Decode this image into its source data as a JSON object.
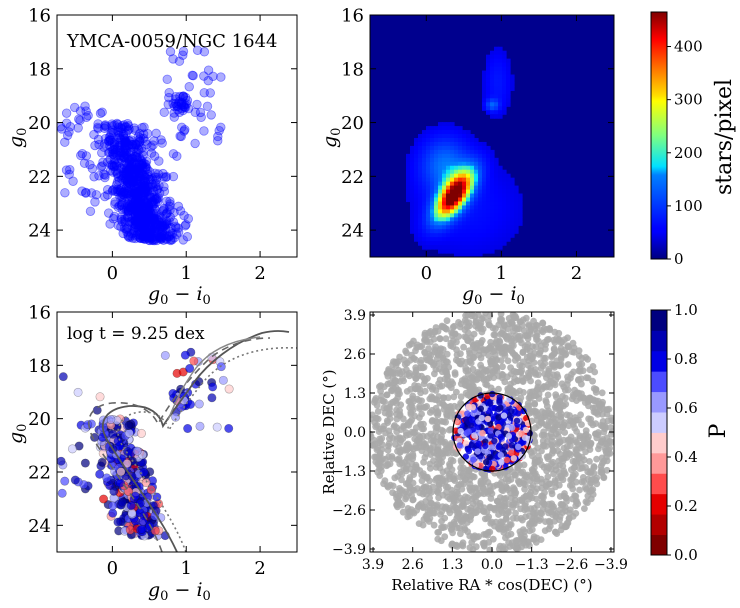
{
  "figure": {
    "panels": [
      {
        "id": "cmd",
        "type": "scatter",
        "xlabel_main": "g",
        "xlabel_sub0": "0",
        "xlabel_minus": " − ",
        "xlabel_i": "i",
        "xlabel_sub1": "0",
        "ylabel_main": "g",
        "ylabel_sub": "0",
        "annotation": "YMCA-0059/NGC 1644",
        "xlim": [
          -0.75,
          2.5
        ],
        "ylim": [
          25.0,
          16.0
        ],
        "xticks": [
          "0",
          "1",
          "2"
        ],
        "yticks": [
          "16",
          "18",
          "20",
          "22",
          "24"
        ],
        "point_color": "#0000ff"
      },
      {
        "id": "density",
        "type": "heatmap",
        "xlabel_main": "g",
        "xlabel_sub0": "0",
        "xlabel_minus": " − ",
        "xlabel_i": "i",
        "xlabel_sub1": "0",
        "ylabel_main": "g",
        "ylabel_sub": "0",
        "xlim": [
          -0.75,
          2.5
        ],
        "ylim": [
          25.0,
          16.0
        ],
        "xticks": [
          "0",
          "1",
          "2"
        ],
        "yticks": [
          "16",
          "18",
          "20",
          "22",
          "24"
        ],
        "colorbar_label": "stars/pixel",
        "colorbar_ticks": [
          "0",
          "100",
          "200",
          "300",
          "400"
        ],
        "colorbar_range": [
          0,
          465
        ]
      },
      {
        "id": "isochrone",
        "type": "scatter",
        "xlabel_main": "g",
        "xlabel_sub0": "0",
        "xlabel_minus": " − ",
        "xlabel_i": "i",
        "xlabel_sub1": "0",
        "ylabel_main": "g",
        "ylabel_sub": "0",
        "annotation": "log t = 9.25 dex",
        "xlim": [
          -0.75,
          2.5
        ],
        "ylim": [
          25.0,
          16.0
        ],
        "xticks": [
          "0",
          "1",
          "2"
        ],
        "yticks": [
          "16",
          "18",
          "20",
          "22",
          "24"
        ]
      },
      {
        "id": "sky",
        "type": "scatter",
        "xlabel": "Relative RA * cos(DEC) (°)",
        "ylabel": "Relative DEC (°)",
        "xlim": [
          4.0,
          -4.0
        ],
        "ylim": [
          -4.0,
          4.0
        ],
        "xticks": [
          "3.9",
          "2.6",
          "1.3",
          "0.0",
          "−1.3",
          "−2.6",
          "−3.9"
        ],
        "yticks": [
          "3.9",
          "2.6",
          "1.3",
          "0.0",
          "−1.3",
          "−2.6",
          "−3.9"
        ],
        "field_radius": 4.0,
        "cluster_radius": 1.3,
        "field_color": "#a9a9a9",
        "colorbar_label": "P",
        "colorbar_ticks": [
          "0.0",
          "0.2",
          "0.4",
          "0.6",
          "0.8",
          "1.0"
        ],
        "membership_colors": [
          "#7f0000",
          "#b20000",
          "#e50000",
          "#ff4c4c",
          "#ff9999",
          "#ffcccc",
          "#ccccff",
          "#9999ff",
          "#4c4cff",
          "#0000e5",
          "#0000b2",
          "#00007f"
        ]
      }
    ]
  },
  "chart_data": [
    {
      "type": "scatter",
      "title": "YMCA-0059/NGC 1644",
      "xlabel": "g0 − i0",
      "ylabel": "g0",
      "xlim": [
        -0.75,
        2.5
      ],
      "ylim": [
        25.0,
        16.0
      ],
      "series": [
        {
          "name": "main sequence",
          "x_center": 0.35,
          "y_range": [
            20.0,
            24.5
          ],
          "approx_points": 750
        },
        {
          "name": "red clump",
          "x": 0.92,
          "y": 19.3,
          "approx_points": 25
        },
        {
          "name": "field outliers",
          "x_range": [
            -0.7,
            1.7
          ],
          "y_range": [
            17.0,
            24.5
          ]
        }
      ]
    },
    {
      "type": "heatmap",
      "xlabel": "g0 − i0",
      "ylabel": "g0",
      "colorbar_label": "stars/pixel",
      "colorbar_range": [
        0,
        465
      ],
      "peak": {
        "x": 0.37,
        "y": 22.7,
        "value": 460
      },
      "secondary_peak": {
        "x": 0.88,
        "y": 19.35
      }
    },
    {
      "type": "scatter",
      "xlabel": "g0 − i0",
      "ylabel": "g0",
      "annotation": "log t = 9.25 dex",
      "isochrones": [
        "solid",
        "dashed",
        "dotted"
      ]
    },
    {
      "type": "scatter",
      "xlabel": "Relative RA * cos(DEC) (°)",
      "ylabel": "Relative DEC (°)",
      "field_radius": 4.0,
      "cluster_radius": 1.3,
      "colorbar_label": "P",
      "colorbar_range": [
        0.0,
        1.0
      ]
    }
  ]
}
